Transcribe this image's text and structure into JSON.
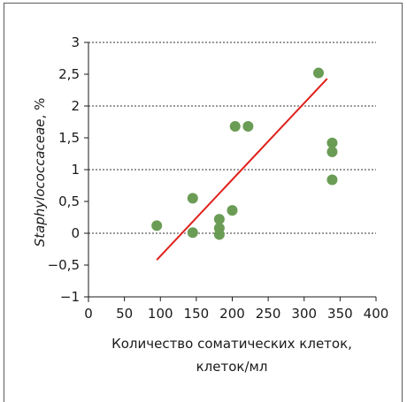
{
  "chart_data": {
    "type": "scatter",
    "title": "",
    "xlabel_line1": "Количество соматических клеток,",
    "xlabel_line2": "клеток/мл",
    "ylabel_italic": "Staphylococcaceae",
    "ylabel_suffix": ", %",
    "xlim": [
      0,
      400
    ],
    "ylim": [
      -1,
      3
    ],
    "x_ticks": [
      0,
      50,
      100,
      150,
      200,
      250,
      300,
      350,
      400
    ],
    "x_tick_labels": [
      "0",
      "50",
      "100",
      "150",
      "200",
      "250",
      "300",
      "350",
      "400"
    ],
    "y_ticks": [
      -1,
      -0.5,
      0,
      0.5,
      1,
      1.5,
      2,
      2.5,
      3
    ],
    "y_tick_labels": [
      "−1",
      "−0,5",
      "0",
      "0,5",
      "1",
      "1,5",
      "2",
      "2,5",
      "3"
    ],
    "dashed_gridlines_at": [
      0,
      1,
      2,
      3
    ],
    "points": [
      {
        "x": 95,
        "y": 0.12
      },
      {
        "x": 145,
        "y": 0.55
      },
      {
        "x": 145,
        "y": 0.01
      },
      {
        "x": 182,
        "y": 0.22
      },
      {
        "x": 182,
        "y": 0.08
      },
      {
        "x": 182,
        "y": -0.02
      },
      {
        "x": 200,
        "y": 0.36
      },
      {
        "x": 204,
        "y": 1.68
      },
      {
        "x": 222,
        "y": 1.68
      },
      {
        "x": 320,
        "y": 2.52
      },
      {
        "x": 339,
        "y": 1.42
      },
      {
        "x": 339,
        "y": 1.28
      },
      {
        "x": 339,
        "y": 0.84
      }
    ],
    "trendline": {
      "x1": 95,
      "y1": -0.42,
      "x2": 332,
      "y2": 2.43
    },
    "colors": {
      "points": "#6a9c55",
      "trendline": "#e0201b",
      "axis": "#1a1a1a",
      "grid": "#333333"
    }
  }
}
